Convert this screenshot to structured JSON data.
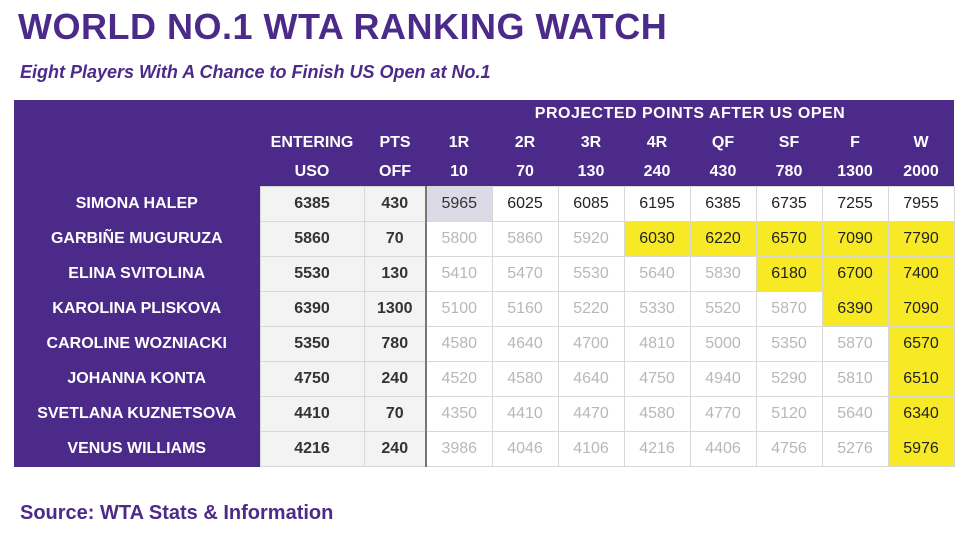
{
  "title": "WORLD NO.1 WTA RANKING WATCH",
  "subtitle": "Eight Players With A Chance to Finish US Open at No.1",
  "source": "Source: WTA Stats & Information",
  "chart_data": {
    "type": "table",
    "group_header": "PROJECTED POINTS AFTER US OPEN",
    "columns": [
      {
        "line1": "ENTERING",
        "line2": "USO"
      },
      {
        "line1": "PTS",
        "line2": "OFF"
      },
      {
        "line1": "1R",
        "line2": "10"
      },
      {
        "line1": "2R",
        "line2": "70"
      },
      {
        "line1": "3R",
        "line2": "130"
      },
      {
        "line1": "4R",
        "line2": "240"
      },
      {
        "line1": "QF",
        "line2": "430"
      },
      {
        "line1": "SF",
        "line2": "780"
      },
      {
        "line1": "F",
        "line2": "1300"
      },
      {
        "line1": "W",
        "line2": "2000"
      }
    ],
    "rows": [
      {
        "player": "SIMONA HALEP",
        "entering": "6385",
        "pts_off": "430",
        "projected": [
          "5965",
          "6025",
          "6085",
          "6195",
          "6385",
          "6735",
          "7255",
          "7955"
        ],
        "status": [
          "current",
          "dark",
          "dark",
          "dark",
          "dark",
          "dark",
          "dark",
          "dark"
        ]
      },
      {
        "player": "GARBIÑE MUGURUZA",
        "entering": "5860",
        "pts_off": "70",
        "projected": [
          "5800",
          "5860",
          "5920",
          "6030",
          "6220",
          "6570",
          "7090",
          "7790"
        ],
        "status": [
          "dim",
          "dim",
          "dim",
          "yellow",
          "yellow",
          "yellow",
          "yellow",
          "yellow"
        ]
      },
      {
        "player": "ELINA SVITOLINA",
        "entering": "5530",
        "pts_off": "130",
        "projected": [
          "5410",
          "5470",
          "5530",
          "5640",
          "5830",
          "6180",
          "6700",
          "7400"
        ],
        "status": [
          "dim",
          "dim",
          "dim",
          "dim",
          "dim",
          "yellow",
          "yellow",
          "yellow"
        ]
      },
      {
        "player": "KAROLINA PLISKOVA",
        "entering": "6390",
        "pts_off": "1300",
        "projected": [
          "5100",
          "5160",
          "5220",
          "5330",
          "5520",
          "5870",
          "6390",
          "7090"
        ],
        "status": [
          "dim",
          "dim",
          "dim",
          "dim",
          "dim",
          "dim",
          "yellow",
          "yellow"
        ]
      },
      {
        "player": "CAROLINE WOZNIACKI",
        "entering": "5350",
        "pts_off": "780",
        "projected": [
          "4580",
          "4640",
          "4700",
          "4810",
          "5000",
          "5350",
          "5870",
          "6570"
        ],
        "status": [
          "dim",
          "dim",
          "dim",
          "dim",
          "dim",
          "dim",
          "dim",
          "yellow"
        ]
      },
      {
        "player": "JOHANNA KONTA",
        "entering": "4750",
        "pts_off": "240",
        "projected": [
          "4520",
          "4580",
          "4640",
          "4750",
          "4940",
          "5290",
          "5810",
          "6510"
        ],
        "status": [
          "dim",
          "dim",
          "dim",
          "dim",
          "dim",
          "dim",
          "dim",
          "yellow"
        ]
      },
      {
        "player": "SVETLANA KUZNETSOVA",
        "entering": "4410",
        "pts_off": "70",
        "projected": [
          "4350",
          "4410",
          "4470",
          "4580",
          "4770",
          "5120",
          "5640",
          "6340"
        ],
        "status": [
          "dim",
          "dim",
          "dim",
          "dim",
          "dim",
          "dim",
          "dim",
          "yellow"
        ]
      },
      {
        "player": "VENUS WILLIAMS",
        "entering": "4216",
        "pts_off": "240",
        "projected": [
          "3986",
          "4046",
          "4106",
          "4216",
          "4406",
          "4756",
          "5276",
          "5976"
        ],
        "status": [
          "dim",
          "dim",
          "dim",
          "dim",
          "dim",
          "dim",
          "dim",
          "yellow"
        ]
      }
    ],
    "colors": {
      "header_bg": "#4b2a8a",
      "highlight_yellow": "#f7ea25",
      "current_cell": "#dcdae6",
      "dim_text": "#b8b8b8"
    }
  }
}
